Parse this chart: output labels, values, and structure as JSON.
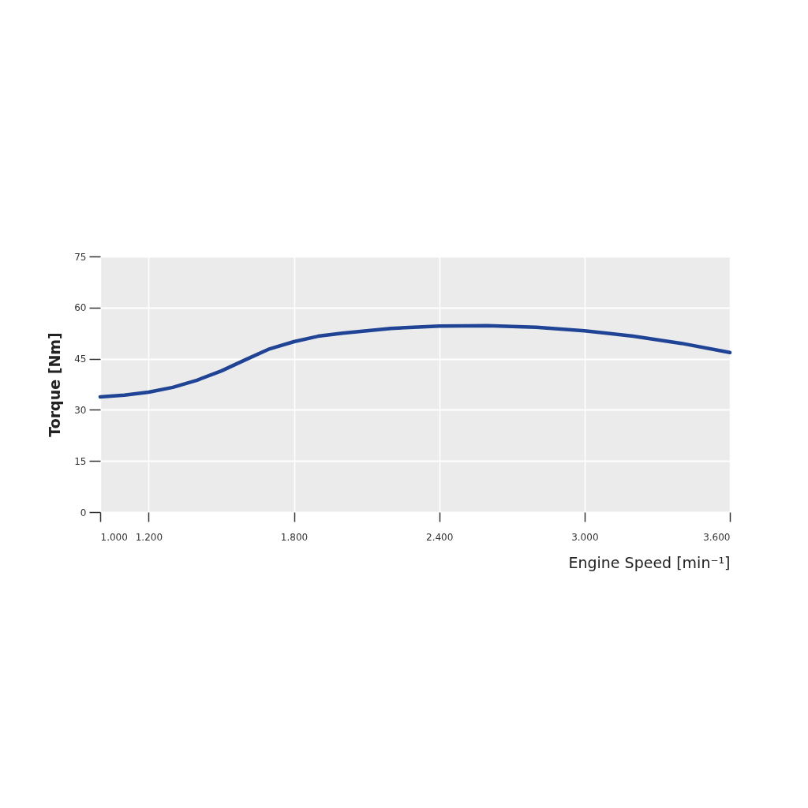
{
  "chart_data": {
    "type": "line",
    "xlabel": "Engine Speed [min⁻¹]",
    "ylabel": "Torque [Nm]",
    "x": [
      1000,
      1100,
      1200,
      1300,
      1400,
      1500,
      1600,
      1700,
      1800,
      1900,
      2000,
      2200,
      2400,
      2600,
      2800,
      3000,
      3200,
      3400,
      3600
    ],
    "series": [
      {
        "color": "#1f4395",
        "values": [
          33.8,
          34.3,
          35.2,
          36.6,
          38.7,
          41.4,
          44.7,
          47.9,
          50.0,
          51.6,
          52.5,
          53.9,
          54.6,
          54.7,
          54.2,
          53.2,
          51.6,
          49.5,
          46.8
        ]
      }
    ],
    "xlim": [
      1000,
      3600
    ],
    "xticks": [
      {
        "value": 1000,
        "label": "1.000"
      },
      {
        "value": 1200,
        "label": "1.200"
      },
      {
        "value": 1800,
        "label": "1.800"
      },
      {
        "value": 2400,
        "label": "2.400"
      },
      {
        "value": 3000,
        "label": "3.000"
      },
      {
        "value": 3600,
        "label": "3.600"
      }
    ],
    "ylim": [
      0,
      75
    ],
    "yticks": [
      0,
      15,
      30,
      45,
      60,
      75
    ],
    "grid": true,
    "marker": "none",
    "line_style": "solid"
  }
}
